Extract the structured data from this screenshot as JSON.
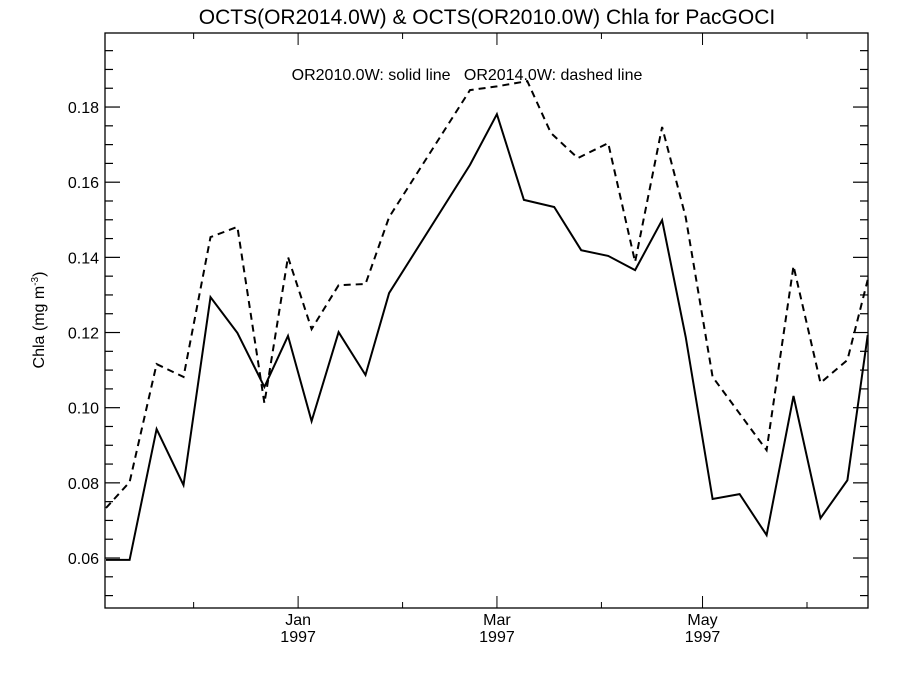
{
  "chart_data": {
    "type": "line",
    "title": "OCTS(OR2014.0W) & OCTS(OR2010.0W)  Chla for PacGOCI",
    "annotation": "OR2010.0W: solid line   OR2014.0W: dashed line",
    "xlabel": "",
    "ylabel": "Chla (mg m",
    "ylabel_sup": "-3",
    "ylabel_close": ")",
    "x_unit": "days since 1997-01-01",
    "xlim": [
      -57.3,
      169.1
    ],
    "ylim": [
      0.0467,
      0.1997
    ],
    "yticks": [
      0.06,
      0.08,
      0.1,
      0.12,
      0.14,
      0.16,
      0.18
    ],
    "ytick_labels": [
      "0.06",
      "0.08",
      "0.10",
      "0.12",
      "0.14",
      "0.16",
      "0.18"
    ],
    "y_minor_step": 0.005,
    "xticks": [
      {
        "day": 0,
        "month": "Jan",
        "year": "1997"
      },
      {
        "day": 59,
        "month": "Mar",
        "year": "1997"
      },
      {
        "day": 120,
        "month": "May",
        "year": "1997"
      }
    ],
    "x_minor_ticks": [
      -31,
      31,
      90,
      151
    ],
    "grid": false,
    "series": [
      {
        "name": "OR2010.0W",
        "style": "solid",
        "color": "#000000",
        "x": [
          -57,
          -50,
          -42,
          -34,
          -26,
          -18,
          -10,
          -3,
          4,
          12,
          20,
          27,
          51,
          59,
          67,
          76,
          84,
          92,
          100,
          108,
          115,
          123,
          131,
          139,
          147,
          155,
          163,
          169
        ],
        "y": [
          0.0595,
          0.0595,
          0.0943,
          0.0794,
          0.1294,
          0.1199,
          0.1055,
          0.1191,
          0.0964,
          0.1201,
          0.1087,
          0.1305,
          0.1646,
          0.1781,
          0.1553,
          0.1534,
          0.1419,
          0.1404,
          0.1366,
          0.1499,
          0.1188,
          0.0757,
          0.077,
          0.0661,
          0.1031,
          0.0706,
          0.0807,
          0.1193
        ]
      },
      {
        "name": "OR2014.0W",
        "style": "dashed",
        "color": "#000000",
        "x": [
          -57,
          -50,
          -42,
          -34,
          -26,
          -18,
          -10,
          -3,
          4,
          12,
          20,
          27,
          51,
          59,
          68,
          75,
          83,
          92,
          100,
          108,
          115,
          123,
          139,
          147,
          155,
          163,
          169
        ],
        "y": [
          0.0733,
          0.0802,
          0.1116,
          0.1082,
          0.1454,
          0.1481,
          0.1012,
          0.1401,
          0.1209,
          0.1326,
          0.1329,
          0.1507,
          0.1845,
          0.1855,
          0.1869,
          0.1731,
          0.1664,
          0.1704,
          0.1388,
          0.1747,
          0.1507,
          0.1082,
          0.0887,
          0.1377,
          0.1066,
          0.1127,
          0.134
        ]
      }
    ]
  }
}
